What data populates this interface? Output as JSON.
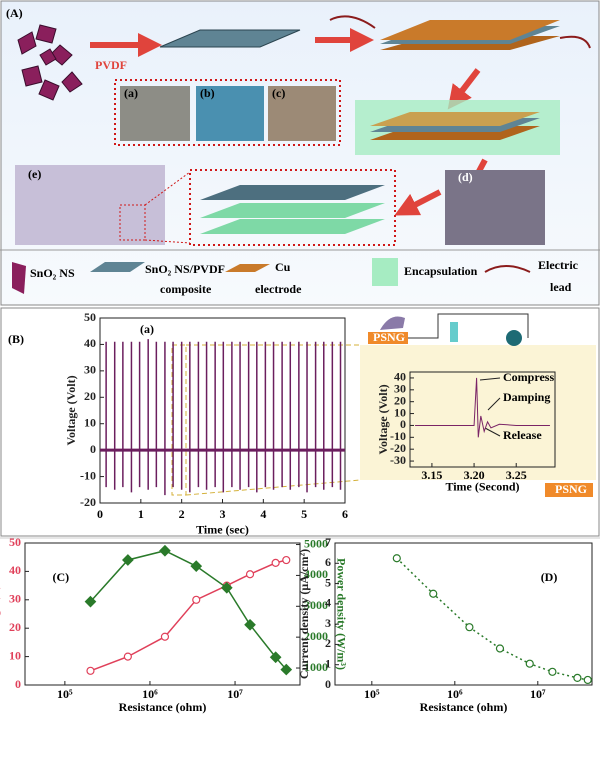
{
  "diagram": {
    "label": "(A)",
    "matrix": "PVDF",
    "photos": [
      "(a)",
      "(b)",
      "(c)",
      "(d)",
      "(e)"
    ],
    "legend": [
      {
        "lines": [
          "SnO₂ NS"
        ]
      },
      {
        "lines": [
          "SnO₂ NS/PVDF",
          "composite"
        ]
      },
      {
        "lines": [
          "Cu",
          "electrode"
        ]
      },
      {
        "lines": [
          "Encapsulation"
        ]
      },
      {
        "lines": [
          "Electric",
          "lead"
        ]
      }
    ]
  },
  "chart_data": [
    {
      "type": "spike",
      "panel": "(B)",
      "title": "(a)",
      "xlabel": "Time (sec)",
      "ylabel": "Voltage (Volt)",
      "x": [
        0.15,
        0.36,
        0.56,
        0.77,
        0.97,
        1.18,
        1.38,
        1.59,
        1.79,
        2.0,
        2.2,
        2.41,
        2.61,
        2.82,
        3.02,
        3.23,
        3.43,
        3.64,
        3.84,
        4.05,
        4.25,
        4.46,
        4.66,
        4.87,
        5.07,
        5.28,
        5.48,
        5.69,
        5.89
      ],
      "series": [
        {
          "color": "#6b1e5e",
          "values": [
            41,
            41,
            41,
            41,
            41,
            42,
            41,
            41,
            41,
            41,
            41,
            41,
            41,
            41,
            41,
            41,
            41,
            41,
            41,
            41,
            41,
            41,
            41,
            41,
            41,
            41,
            41,
            41,
            41
          ]
        },
        {
          "color": "#6b1e5e",
          "values": [
            -14,
            -15,
            -14,
            -16,
            -14,
            -15,
            -14,
            -17,
            -14,
            -15,
            -16,
            -14,
            -15,
            -14,
            -16,
            -14,
            -15,
            -14,
            -16,
            -14,
            -15,
            -14,
            -15,
            -14,
            -16,
            -14,
            -15,
            -14,
            -15
          ]
        }
      ],
      "xlim": [
        0,
        6
      ],
      "xticks": [
        0,
        1,
        2,
        3,
        4,
        5,
        6
      ],
      "ylim": [
        -20,
        50
      ],
      "yticks": [
        -20,
        -10,
        0,
        10,
        20,
        30,
        40,
        50
      ]
    },
    {
      "type": "line",
      "xlabel": "Time (Second)",
      "ylabel": "Voltage (Volt)",
      "annotations": [
        "Compress",
        "Damping",
        "Release"
      ],
      "devices": [
        "PSNG",
        "PSNG"
      ],
      "x": [
        3.13,
        3.2,
        3.203,
        3.205,
        3.208,
        3.212,
        3.216,
        3.22,
        3.23,
        3.25,
        3.29
      ],
      "series": [
        {
          "color": "#7a2466",
          "values": [
            0,
            0,
            40,
            -10,
            8,
            -5,
            3,
            -2,
            1,
            0,
            0
          ]
        }
      ],
      "xlim": [
        3.124,
        3.296
      ],
      "xticks": [
        3.15,
        {
          "value": 3.2,
          "label": "3.20"
        },
        3.25
      ],
      "ylim": [
        -35,
        45
      ],
      "yticks": [
        -30,
        -20,
        -10,
        0,
        10,
        20,
        30,
        40
      ]
    },
    {
      "type": "line",
      "panel": "(C)",
      "xlabel": "Resistance (ohm)",
      "ylabel": "Voltage (V)",
      "y2label": "Power density (W/m³)",
      "xscale": "log",
      "x": [
        200000,
        550000,
        1500000,
        3500000,
        8000000,
        15000000,
        30000000,
        40000000
      ],
      "series": [
        {
          "color": "#e0405a",
          "marker": "circle",
          "values": [
            5,
            10,
            17,
            30,
            35,
            39,
            43,
            44
          ]
        },
        {
          "color": "#2a7a2a",
          "marker": "diamond",
          "axis": "y2",
          "values": [
            3150,
            4500,
            4800,
            4300,
            3600,
            2400,
            1350,
            950
          ]
        }
      ],
      "xlim": [
        34000,
        58000000
      ],
      "xticks": [
        {
          "value": 100000,
          "label": "10⁵"
        },
        {
          "value": 1000000,
          "label": "10⁶"
        },
        {
          "value": 10000000,
          "label": "10⁷"
        }
      ],
      "ylim": [
        0,
        50
      ],
      "yticks": [
        0,
        10,
        20,
        30,
        40,
        50
      ],
      "y2lim": [
        450,
        5050
      ],
      "y2ticks": [
        1000,
        2000,
        3000,
        4000,
        5000
      ]
    },
    {
      "type": "line",
      "panel": "(D)",
      "xlabel": "Resistance (ohm)",
      "ylabel": "Current density (μA/cm²)",
      "xscale": "log",
      "x": [
        200000,
        550000,
        1500000,
        3500000,
        8000000,
        15000000,
        30000000,
        40000000
      ],
      "series": [
        {
          "color": "#2a7a2a",
          "marker": "circle",
          "linestyle": "dotted",
          "values": [
            6.25,
            4.5,
            2.85,
            1.8,
            1.05,
            0.65,
            0.35,
            0.25
          ]
        }
      ],
      "xlim": [
        36000,
        45000000
      ],
      "xticks": [
        {
          "value": 100000,
          "label": "10⁵"
        },
        {
          "value": 1000000,
          "label": "10⁶"
        },
        {
          "value": 10000000,
          "label": "10⁷"
        }
      ],
      "ylim": [
        0,
        7
      ],
      "yticks": [
        0,
        1,
        2,
        3,
        4,
        5,
        6,
        7
      ]
    }
  ]
}
